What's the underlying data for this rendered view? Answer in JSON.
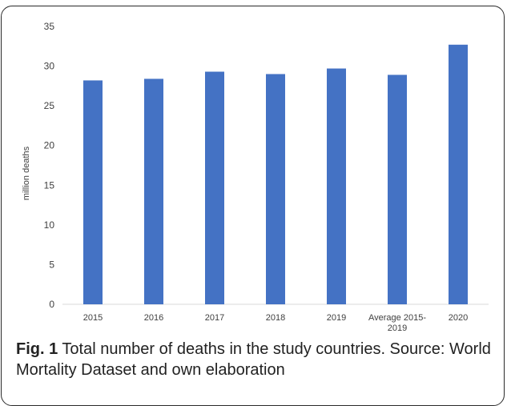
{
  "chart_data": {
    "type": "bar",
    "categories": [
      "2015",
      "2016",
      "2017",
      "2018",
      "2019",
      "Average 2015-2019",
      "2020"
    ],
    "category_label_lines": [
      [
        "2015"
      ],
      [
        "2016"
      ],
      [
        "2017"
      ],
      [
        "2018"
      ],
      [
        "2019"
      ],
      [
        "Average 2015-",
        "2019"
      ],
      [
        "2020"
      ]
    ],
    "values": [
      28.2,
      28.4,
      29.3,
      29.0,
      29.7,
      28.9,
      32.7
    ],
    "ylabel": "million deaths",
    "xlabel": "",
    "ylim": [
      0,
      35
    ],
    "yticks": [
      0,
      5,
      10,
      15,
      20,
      25,
      30,
      35
    ],
    "grid": false,
    "bar_color": "#4472C4"
  },
  "caption": {
    "label": "Fig. 1",
    "text": " Total number of deaths in the study countries. Source: World Mortality Dataset and own elaboration"
  }
}
